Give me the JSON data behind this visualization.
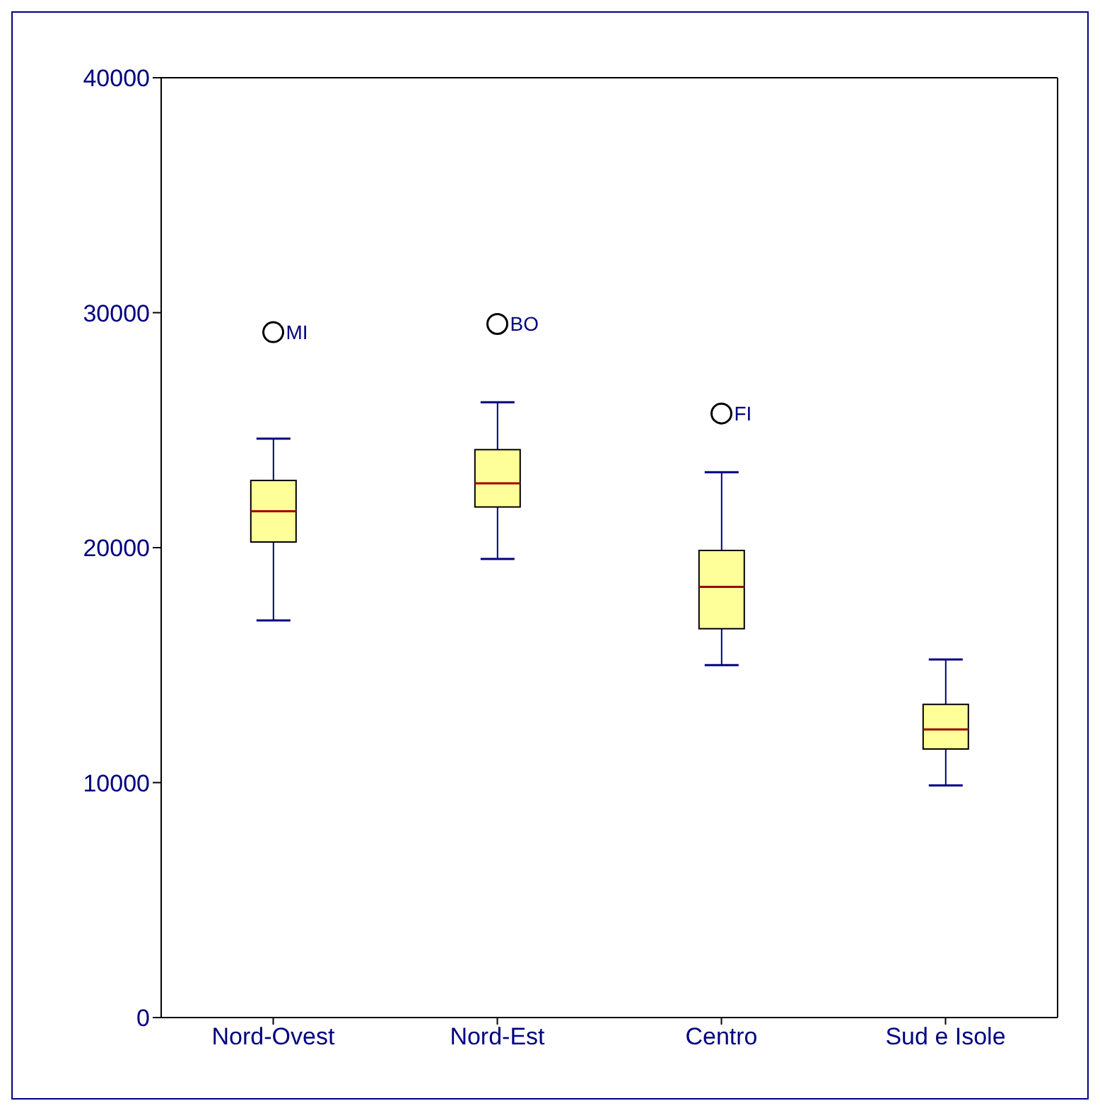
{
  "chart_data": {
    "type": "box",
    "categories": [
      "Nord-Ovest",
      "Nord-Est",
      "Centro",
      "Sud e Isole"
    ],
    "boxes": [
      {
        "low": 16900,
        "q1": 20240,
        "median": 21550,
        "q3": 22860,
        "high": 24640,
        "outliers": [
          29170
        ]
      },
      {
        "low": 19520,
        "q1": 21730,
        "median": 22740,
        "q3": 24170,
        "high": 26190,
        "outliers": [
          29520
        ]
      },
      {
        "low": 15000,
        "q1": 16550,
        "median": 18330,
        "q3": 19880,
        "high": 23210,
        "outliers": [
          25710
        ]
      },
      {
        "low": 9880,
        "q1": 11430,
        "median": 12260,
        "q3": 13330,
        "high": 15240
      }
    ],
    "color": "#ffff99",
    "ylim": [
      0,
      40000
    ],
    "yticks": [
      0,
      10000,
      20000,
      30000,
      40000
    ],
    "annotations": [
      "MI",
      "BO",
      "FI"
    ]
  }
}
